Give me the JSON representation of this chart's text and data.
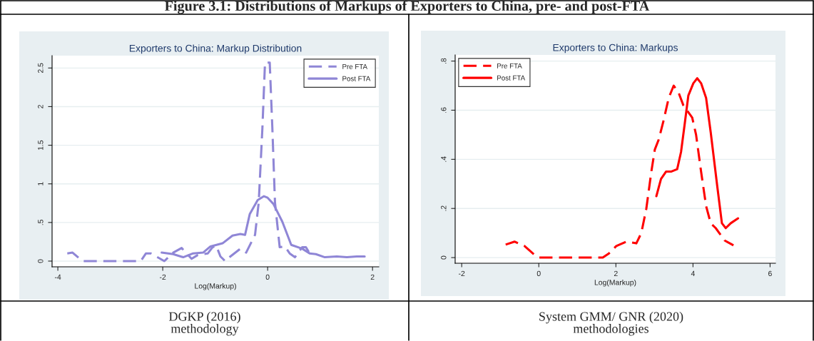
{
  "chart_data": [
    {
      "type": "other",
      "title": "Figure 3.1: Distributions of Markups of Exporters to China, pre- and post-FTA"
    },
    {
      "type": "line",
      "title": "Exporters to China: Markup Distribution",
      "xlabel": "Log(Markup)",
      "xlim": [
        -4.11,
        2.12
      ],
      "xticks": [
        -4,
        -2,
        0,
        2
      ],
      "ylim": [
        -0.074,
        2.66
      ],
      "yticks": [
        0,
        {
          "value": 0.5,
          "label": ".5"
        },
        1,
        1.5,
        2,
        2.5
      ],
      "grid": "y",
      "legend": "top right",
      "annotations": [
        "DGKP (2016)\nmethodology"
      ],
      "series": [
        {
          "name": "Pre FTA",
          "color": "#8f86d6",
          "line_style": "dashed",
          "x": [
            -3.82,
            -3.72,
            -3.53,
            -2.42,
            -2.32,
            -2.23,
            -1.97,
            -1.8,
            -1.64,
            -1.45,
            -1.33,
            -1.14,
            -1.05,
            -0.98,
            -0.9,
            -0.81,
            -0.71,
            -0.52,
            -0.41,
            -0.24,
            -0.17,
            -0.1,
            -0.05,
            0.04,
            0.09,
            0.14,
            0.23,
            0.33,
            0.42,
            0.52,
            0.66,
            0.73,
            0.8
          ],
          "values": [
            0.1,
            0.11,
            0,
            0,
            0.1,
            0.1,
            0,
            0.11,
            0.17,
            0.03,
            0.08,
            0.1,
            0.18,
            0.2,
            0.06,
            0,
            0.06,
            0.16,
            0.11,
            0.34,
            0.76,
            1.72,
            2.57,
            2.57,
            1.72,
            0.76,
            0.18,
            0.19,
            0.1,
            0.05,
            0.18,
            0.18,
            0.1
          ]
        },
        {
          "name": "Post FTA",
          "color": "#8f86d6",
          "line_style": "solid",
          "x": [
            -2.02,
            -1.8,
            -1.61,
            -1.42,
            -1.23,
            -1.09,
            -0.86,
            -0.67,
            -0.52,
            -0.43,
            -0.34,
            -0.19,
            -0.07,
            0.0,
            0.11,
            0.28,
            0.45,
            0.66,
            0.8,
            0.92,
            1.09,
            1.32,
            1.51,
            1.7,
            1.85
          ],
          "values": [
            0.11,
            0.09,
            0.05,
            0.1,
            0.11,
            0.19,
            0.23,
            0.33,
            0.35,
            0.34,
            0.61,
            0.79,
            0.84,
            0.82,
            0.74,
            0.51,
            0.21,
            0.16,
            0.1,
            0.09,
            0.05,
            0.06,
            0.05,
            0.06,
            0.06
          ]
        }
      ]
    },
    {
      "type": "line",
      "title": "Exporters to China: Markups",
      "xlabel": "Log(Markup)",
      "xlim": [
        -2.17,
        6.14
      ],
      "xticks": [
        -2,
        0,
        2,
        4,
        6
      ],
      "ylim": [
        -0.023,
        0.825
      ],
      "yticks": [
        0,
        {
          "value": 0.2,
          "label": ".2"
        },
        {
          "value": 0.4,
          "label": ".4"
        },
        {
          "value": 0.6,
          "label": ".6"
        },
        {
          "value": 0.8,
          "label": ".8"
        }
      ],
      "grid": "y",
      "legend": "top left",
      "annotations": [
        "System GMM/ GNR (2020)\nmethodologies"
      ],
      "series": [
        {
          "name": "Pre FTA",
          "color": "#ff0000",
          "line_style": "dashed",
          "x": [
            -0.86,
            -0.63,
            -0.37,
            -0.12,
            0.01,
            1.66,
            1.82,
            2.01,
            2.27,
            2.53,
            2.66,
            2.79,
            2.92,
            3.01,
            3.11,
            3.24,
            3.37,
            3.5,
            3.63,
            3.75,
            3.98,
            4.08,
            4.21,
            4.34,
            4.46,
            4.59,
            4.82,
            5.05
          ],
          "values": [
            0.053,
            0.065,
            0.047,
            0.012,
            0,
            0,
            0.017,
            0.047,
            0.065,
            0.058,
            0.1,
            0.2,
            0.35,
            0.44,
            0.48,
            0.56,
            0.65,
            0.7,
            0.67,
            0.62,
            0.57,
            0.5,
            0.35,
            0.21,
            0.14,
            0.12,
            0.07,
            0.05
          ]
        },
        {
          "name": "Post FTA",
          "color": "#ff0000",
          "line_style": "solid",
          "x": [
            3.05,
            3.17,
            3.3,
            3.43,
            3.59,
            3.69,
            3.79,
            3.88,
            4.01,
            4.11,
            4.21,
            4.34,
            4.46,
            4.63,
            4.75,
            4.85,
            4.98,
            5.17
          ],
          "values": [
            0.25,
            0.32,
            0.35,
            0.35,
            0.36,
            0.43,
            0.55,
            0.66,
            0.71,
            0.73,
            0.71,
            0.65,
            0.51,
            0.29,
            0.14,
            0.12,
            0.14,
            0.16
          ]
        }
      ]
    }
  ]
}
